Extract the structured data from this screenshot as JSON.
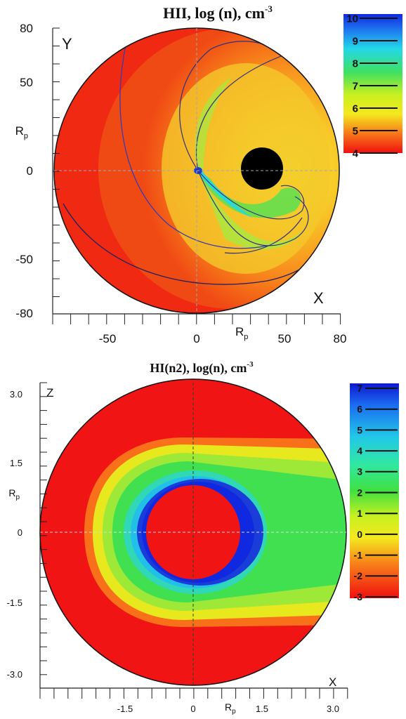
{
  "top": {
    "title_main": "HII, log (n), cm",
    "title_sup": "-3",
    "y_axis_name": "Y",
    "x_axis_name": "X",
    "y_unit_main": "R",
    "y_unit_sub": "p",
    "x_unit_main": "R",
    "x_unit_sub": "p",
    "y_ticks": [
      "80",
      "50",
      "0",
      "-50",
      "-80"
    ],
    "x_ticks": [
      "-50",
      "0",
      "50",
      "80"
    ],
    "colorbar_labels": [
      "10",
      "9",
      "8",
      "7",
      "6",
      "5",
      "4"
    ]
  },
  "bottom": {
    "title_main": "HI(n2), log(n), cm",
    "title_sup": "-3",
    "z_axis_name": "Z",
    "x_axis_name": "X",
    "y_unit_main": "R",
    "y_unit_sub": "p",
    "x_unit_main": "R",
    "x_unit_sub": "p",
    "y_ticks": [
      "3.0",
      "1.5",
      "0",
      "-1.5",
      "-3.0"
    ],
    "x_ticks": [
      "-1.5",
      "0",
      "1.5",
      "3.0"
    ],
    "colorbar_labels": [
      "7",
      "6",
      "5",
      "4",
      "3",
      "2",
      "1",
      "0",
      "-1",
      "-2",
      "-3"
    ]
  },
  "colors": {
    "red": "#f01010",
    "orange": "#f8701a",
    "yellow": "#f4e81e",
    "green": "#3ce050",
    "cyan": "#22d8e8",
    "blue": "#1a3cd8",
    "planet": "#000000"
  }
}
